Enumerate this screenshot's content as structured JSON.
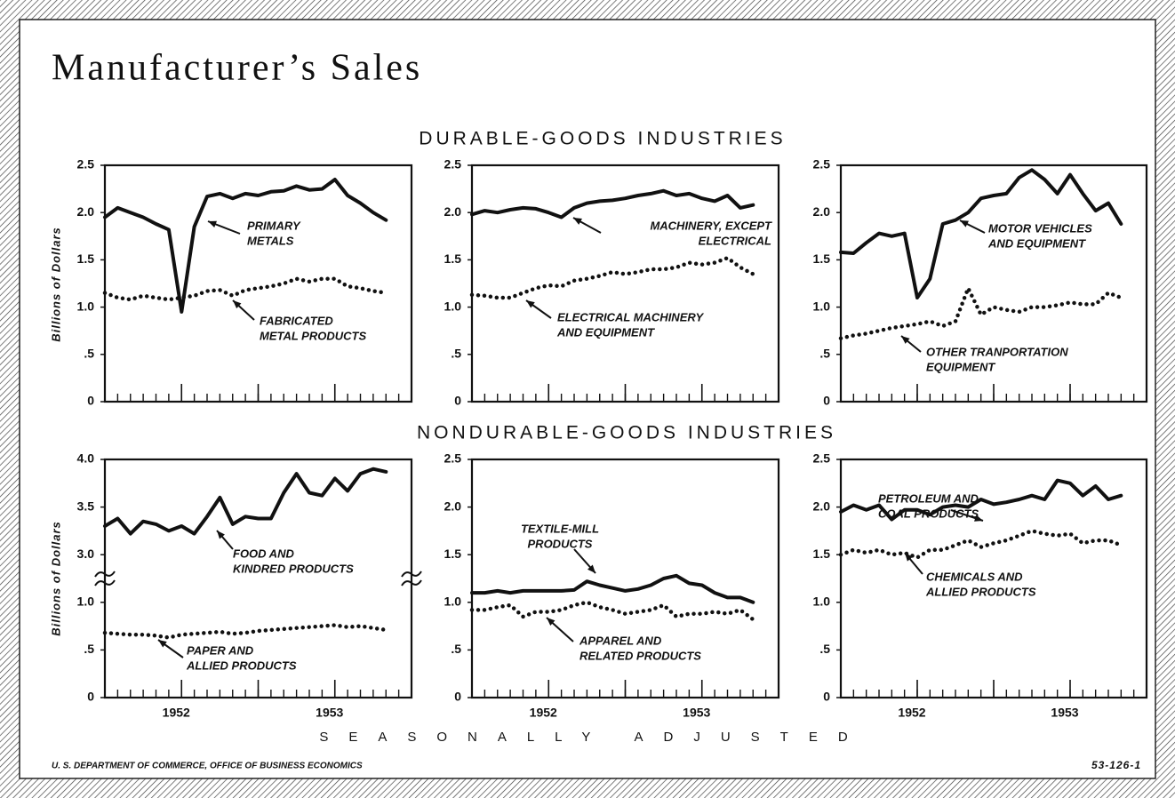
{
  "title": "Manufacturer’s Sales",
  "headings": [
    "DURABLE-GOODS INDUSTRIES",
    "NONDURABLE-GOODS INDUSTRIES"
  ],
  "note": "SEASONALLY ADJUSTED",
  "source": "U. S. DEPARTMENT OF COMMERCE, OFFICE OF BUSINESS ECONOMICS",
  "code": "53-126-1",
  "chart_data": [
    {
      "type": "line",
      "ylabel": "Billions of Dollars",
      "x": [
        0,
        1,
        2,
        3,
        4,
        5,
        6,
        7,
        8,
        9,
        10,
        11,
        12,
        13,
        14,
        15,
        16,
        17,
        18,
        19,
        20,
        21,
        22
      ],
      "xlim": [
        0,
        24
      ],
      "xticks": [
        6,
        12,
        18
      ],
      "ylim": [
        0,
        2.5
      ],
      "yticks": [
        0,
        {
          "value": 0.5,
          "label": ".5"
        },
        {
          "value": 1,
          "label": "1.0"
        },
        1.5,
        {
          "value": 2,
          "label": "2.0"
        },
        2.5
      ],
      "series": [
        {
          "name": [
            "PRIMARY",
            "METALS"
          ],
          "color": "#111",
          "style": "solid",
          "values": [
            1.95,
            2.05,
            2.0,
            1.95,
            1.88,
            1.82,
            0.95,
            1.85,
            2.17,
            2.2,
            2.15,
            2.2,
            2.18,
            2.22,
            2.23,
            2.28,
            2.24,
            2.25,
            2.35,
            2.18,
            2.1,
            2.0,
            1.92
          ]
        },
        {
          "name": [
            "FABRICATED",
            "METAL PRODUCTS"
          ],
          "color": "#111",
          "style": "dotted",
          "values": [
            1.15,
            1.1,
            1.08,
            1.12,
            1.1,
            1.08,
            1.1,
            1.12,
            1.17,
            1.18,
            1.12,
            1.18,
            1.2,
            1.22,
            1.25,
            1.3,
            1.27,
            1.3,
            1.3,
            1.22,
            1.2,
            1.17,
            1.15
          ]
        }
      ]
    },
    {
      "type": "line",
      "x": [
        0,
        1,
        2,
        3,
        4,
        5,
        6,
        7,
        8,
        9,
        10,
        11,
        12,
        13,
        14,
        15,
        16,
        17,
        18,
        19,
        20,
        21,
        22
      ],
      "xlim": [
        0,
        24
      ],
      "xticks": [
        6,
        12,
        18
      ],
      "ylim": [
        0,
        2.5
      ],
      "yticks": [
        0,
        {
          "value": 0.5,
          "label": ".5"
        },
        {
          "value": 1,
          "label": "1.0"
        },
        1.5,
        {
          "value": 2,
          "label": "2.0"
        },
        2.5
      ],
      "series": [
        {
          "name": [
            "MACHINERY, EXCEPT",
            "ELECTRICAL"
          ],
          "color": "#111",
          "style": "solid",
          "values": [
            1.98,
            2.02,
            2.0,
            2.03,
            2.05,
            2.04,
            2.0,
            1.95,
            2.05,
            2.1,
            2.12,
            2.13,
            2.15,
            2.18,
            2.2,
            2.23,
            2.18,
            2.2,
            2.15,
            2.12,
            2.18,
            2.05,
            2.08
          ]
        },
        {
          "name": [
            "ELECTRICAL MACHINERY",
            "AND EQUIPMENT"
          ],
          "color": "#111",
          "style": "dotted",
          "values": [
            1.13,
            1.12,
            1.1,
            1.1,
            1.15,
            1.2,
            1.23,
            1.22,
            1.28,
            1.3,
            1.33,
            1.37,
            1.35,
            1.37,
            1.4,
            1.4,
            1.42,
            1.47,
            1.45,
            1.47,
            1.52,
            1.42,
            1.35
          ]
        }
      ]
    },
    {
      "type": "line",
      "x": [
        0,
        1,
        2,
        3,
        4,
        5,
        6,
        7,
        8,
        9,
        10,
        11,
        12,
        13,
        14,
        15,
        16,
        17,
        18,
        19,
        20,
        21,
        22
      ],
      "xlim": [
        0,
        24
      ],
      "xticks": [
        6,
        12,
        18
      ],
      "ylim": [
        0,
        2.5
      ],
      "yticks": [
        0,
        {
          "value": 0.5,
          "label": ".5"
        },
        {
          "value": 1,
          "label": "1.0"
        },
        1.5,
        {
          "value": 2,
          "label": "2.0"
        },
        2.5
      ],
      "series": [
        {
          "name": [
            "MOTOR VEHICLES",
            "AND EQUIPMENT"
          ],
          "color": "#111",
          "style": "solid",
          "values": [
            1.58,
            1.57,
            1.68,
            1.78,
            1.75,
            1.78,
            1.1,
            1.3,
            1.88,
            1.92,
            2.0,
            2.15,
            2.18,
            2.2,
            2.37,
            2.45,
            2.35,
            2.2,
            2.4,
            2.2,
            2.02,
            2.1,
            1.88
          ]
        },
        {
          "name": [
            "OTHER TRANPORTATION",
            "EQUIPMENT"
          ],
          "color": "#111",
          "style": "dotted",
          "values": [
            0.67,
            0.7,
            0.72,
            0.75,
            0.78,
            0.8,
            0.82,
            0.85,
            0.8,
            0.85,
            1.2,
            0.92,
            1.0,
            0.97,
            0.95,
            1.0,
            1.0,
            1.02,
            1.05,
            1.03,
            1.03,
            1.15,
            1.1
          ]
        }
      ]
    },
    {
      "type": "line",
      "ylabel": "Billions of Dollars",
      "x": [
        0,
        1,
        2,
        3,
        4,
        5,
        6,
        7,
        8,
        9,
        10,
        11,
        12,
        13,
        14,
        15,
        16,
        17,
        18,
        19,
        20,
        21,
        22
      ],
      "xlim": [
        0,
        24
      ],
      "xticks": [
        {
          "value": 6,
          "label": "1952"
        },
        12,
        {
          "value": 18,
          "label": "1953"
        }
      ],
      "ylim": [
        0,
        4
      ],
      "axis_break": [
        1.25,
        2.75
      ],
      "yticks": [
        0,
        {
          "value": 0.5,
          "label": ".5"
        },
        {
          "value": 1,
          "label": "1.0"
        },
        {
          "value": 3,
          "label": "3.0"
        },
        3.5,
        {
          "value": 4,
          "label": "4.0"
        }
      ],
      "series": [
        {
          "name": [
            "FOOD AND",
            "KINDRED PRODUCTS"
          ],
          "color": "#111",
          "style": "solid",
          "values": [
            3.3,
            3.38,
            3.22,
            3.35,
            3.32,
            3.25,
            3.3,
            3.22,
            3.4,
            3.6,
            3.32,
            3.4,
            3.38,
            3.38,
            3.65,
            3.85,
            3.65,
            3.62,
            3.8,
            3.67,
            3.85,
            3.9,
            3.87
          ]
        },
        {
          "name": [
            "PAPER AND",
            "ALLIED PRODUCTS"
          ],
          "color": "#111",
          "style": "dotted",
          "values": [
            0.68,
            0.67,
            0.66,
            0.66,
            0.65,
            0.63,
            0.66,
            0.67,
            0.68,
            0.69,
            0.67,
            0.68,
            0.7,
            0.71,
            0.72,
            0.73,
            0.74,
            0.75,
            0.76,
            0.74,
            0.75,
            0.73,
            0.71
          ]
        }
      ]
    },
    {
      "type": "line",
      "x": [
        0,
        1,
        2,
        3,
        4,
        5,
        6,
        7,
        8,
        9,
        10,
        11,
        12,
        13,
        14,
        15,
        16,
        17,
        18,
        19,
        20,
        21,
        22
      ],
      "xlim": [
        0,
        24
      ],
      "xticks": [
        {
          "value": 6,
          "label": "1952"
        },
        12,
        {
          "value": 18,
          "label": "1953"
        }
      ],
      "ylim": [
        0,
        2.5
      ],
      "yticks": [
        0,
        {
          "value": 0.5,
          "label": ".5"
        },
        {
          "value": 1,
          "label": "1.0"
        },
        1.5,
        {
          "value": 2,
          "label": "2.0"
        },
        2.5
      ],
      "series": [
        {
          "name": [
            "TEXTILE-MILL",
            "PRODUCTS"
          ],
          "color": "#111",
          "style": "solid",
          "values": [
            1.1,
            1.1,
            1.12,
            1.1,
            1.12,
            1.12,
            1.12,
            1.12,
            1.13,
            1.22,
            1.18,
            1.15,
            1.12,
            1.14,
            1.18,
            1.25,
            1.28,
            1.2,
            1.18,
            1.1,
            1.05,
            1.05,
            1.0
          ]
        },
        {
          "name": [
            "APPAREL AND",
            "RELATED PRODUCTS"
          ],
          "color": "#111",
          "style": "dotted",
          "values": [
            0.92,
            0.92,
            0.95,
            0.97,
            0.85,
            0.9,
            0.9,
            0.92,
            0.97,
            1.0,
            0.95,
            0.92,
            0.88,
            0.9,
            0.92,
            0.97,
            0.85,
            0.88,
            0.88,
            0.9,
            0.88,
            0.92,
            0.82
          ]
        }
      ]
    },
    {
      "type": "line",
      "x": [
        0,
        1,
        2,
        3,
        4,
        5,
        6,
        7,
        8,
        9,
        10,
        11,
        12,
        13,
        14,
        15,
        16,
        17,
        18,
        19,
        20,
        21,
        22
      ],
      "xlim": [
        0,
        24
      ],
      "xticks": [
        {
          "value": 6,
          "label": "1952"
        },
        12,
        {
          "value": 18,
          "label": "1953"
        }
      ],
      "ylim": [
        0,
        2.5
      ],
      "yticks": [
        0,
        {
          "value": 0.5,
          "label": ".5"
        },
        {
          "value": 1,
          "label": "1.0"
        },
        1.5,
        {
          "value": 2,
          "label": "2.0"
        },
        2.5
      ],
      "series": [
        {
          "name": [
            "PETROLEUM AND",
            "COAL PRODUCTS"
          ],
          "color": "#111",
          "style": "solid",
          "values": [
            1.95,
            2.02,
            1.97,
            2.02,
            1.87,
            1.97,
            1.97,
            1.92,
            2.0,
            2.02,
            2.0,
            2.08,
            2.03,
            2.05,
            2.08,
            2.12,
            2.08,
            2.28,
            2.25,
            2.12,
            2.22,
            2.08,
            2.12
          ]
        },
        {
          "name": [
            "CHEMICALS AND",
            "ALLIED PRODUCTS"
          ],
          "color": "#111",
          "style": "dotted",
          "values": [
            1.5,
            1.55,
            1.52,
            1.55,
            1.5,
            1.52,
            1.47,
            1.55,
            1.55,
            1.6,
            1.65,
            1.58,
            1.62,
            1.65,
            1.7,
            1.75,
            1.72,
            1.7,
            1.72,
            1.62,
            1.65,
            1.65,
            1.6
          ]
        }
      ]
    }
  ]
}
